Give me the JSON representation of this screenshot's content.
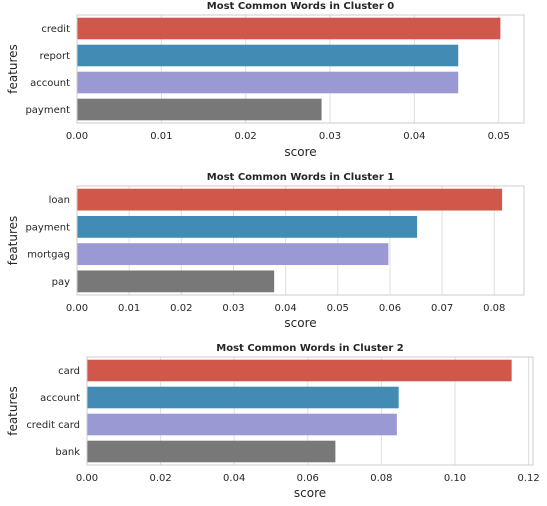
{
  "chart_data": [
    {
      "type": "bar",
      "orientation": "horizontal",
      "title": "Most Common Words in Cluster 0",
      "xlabel": "score",
      "ylabel": "features",
      "categories": [
        "credit",
        "report",
        "account",
        "payment"
      ],
      "values": [
        0.0502,
        0.0452,
        0.0452,
        0.029
      ],
      "xlim": [
        0,
        0.053
      ],
      "xticks": [
        0.0,
        0.01,
        0.02,
        0.03,
        0.04,
        0.05
      ],
      "xtick_labels": [
        "0.00",
        "0.01",
        "0.02",
        "0.03",
        "0.04",
        "0.05"
      ],
      "grid": true
    },
    {
      "type": "bar",
      "orientation": "horizontal",
      "title": "Most Common Words in Cluster 1",
      "xlabel": "score",
      "ylabel": "features",
      "categories": [
        "loan",
        "payment",
        "mortgag",
        "pay"
      ],
      "values": [
        0.0815,
        0.0652,
        0.0597,
        0.0378
      ],
      "xlim": [
        0,
        0.0857
      ],
      "xticks": [
        0.0,
        0.01,
        0.02,
        0.03,
        0.04,
        0.05,
        0.06,
        0.07,
        0.08
      ],
      "xtick_labels": [
        "0.00",
        "0.01",
        "0.02",
        "0.03",
        "0.04",
        "0.05",
        "0.06",
        "0.07",
        "0.08"
      ],
      "grid": true
    },
    {
      "type": "bar",
      "orientation": "horizontal",
      "title": "Most Common Words in Cluster 2",
      "xlabel": "score",
      "ylabel": "features",
      "categories": [
        "card",
        "account",
        "credit card",
        "bank"
      ],
      "values": [
        0.1154,
        0.0847,
        0.0842,
        0.0675
      ],
      "xlim": [
        0,
        0.1212
      ],
      "xticks": [
        0.0,
        0.02,
        0.04,
        0.06,
        0.08,
        0.1,
        0.12
      ],
      "xtick_labels": [
        "0.00",
        "0.02",
        "0.04",
        "0.06",
        "0.08",
        "0.10",
        "0.12"
      ],
      "grid": true
    }
  ],
  "colors": {
    "bars": [
      "#d1574a",
      "#418bb4",
      "#9b99d3",
      "#787878"
    ],
    "grid": "#dedede",
    "frame": "#cccccc",
    "text": "#262626"
  }
}
